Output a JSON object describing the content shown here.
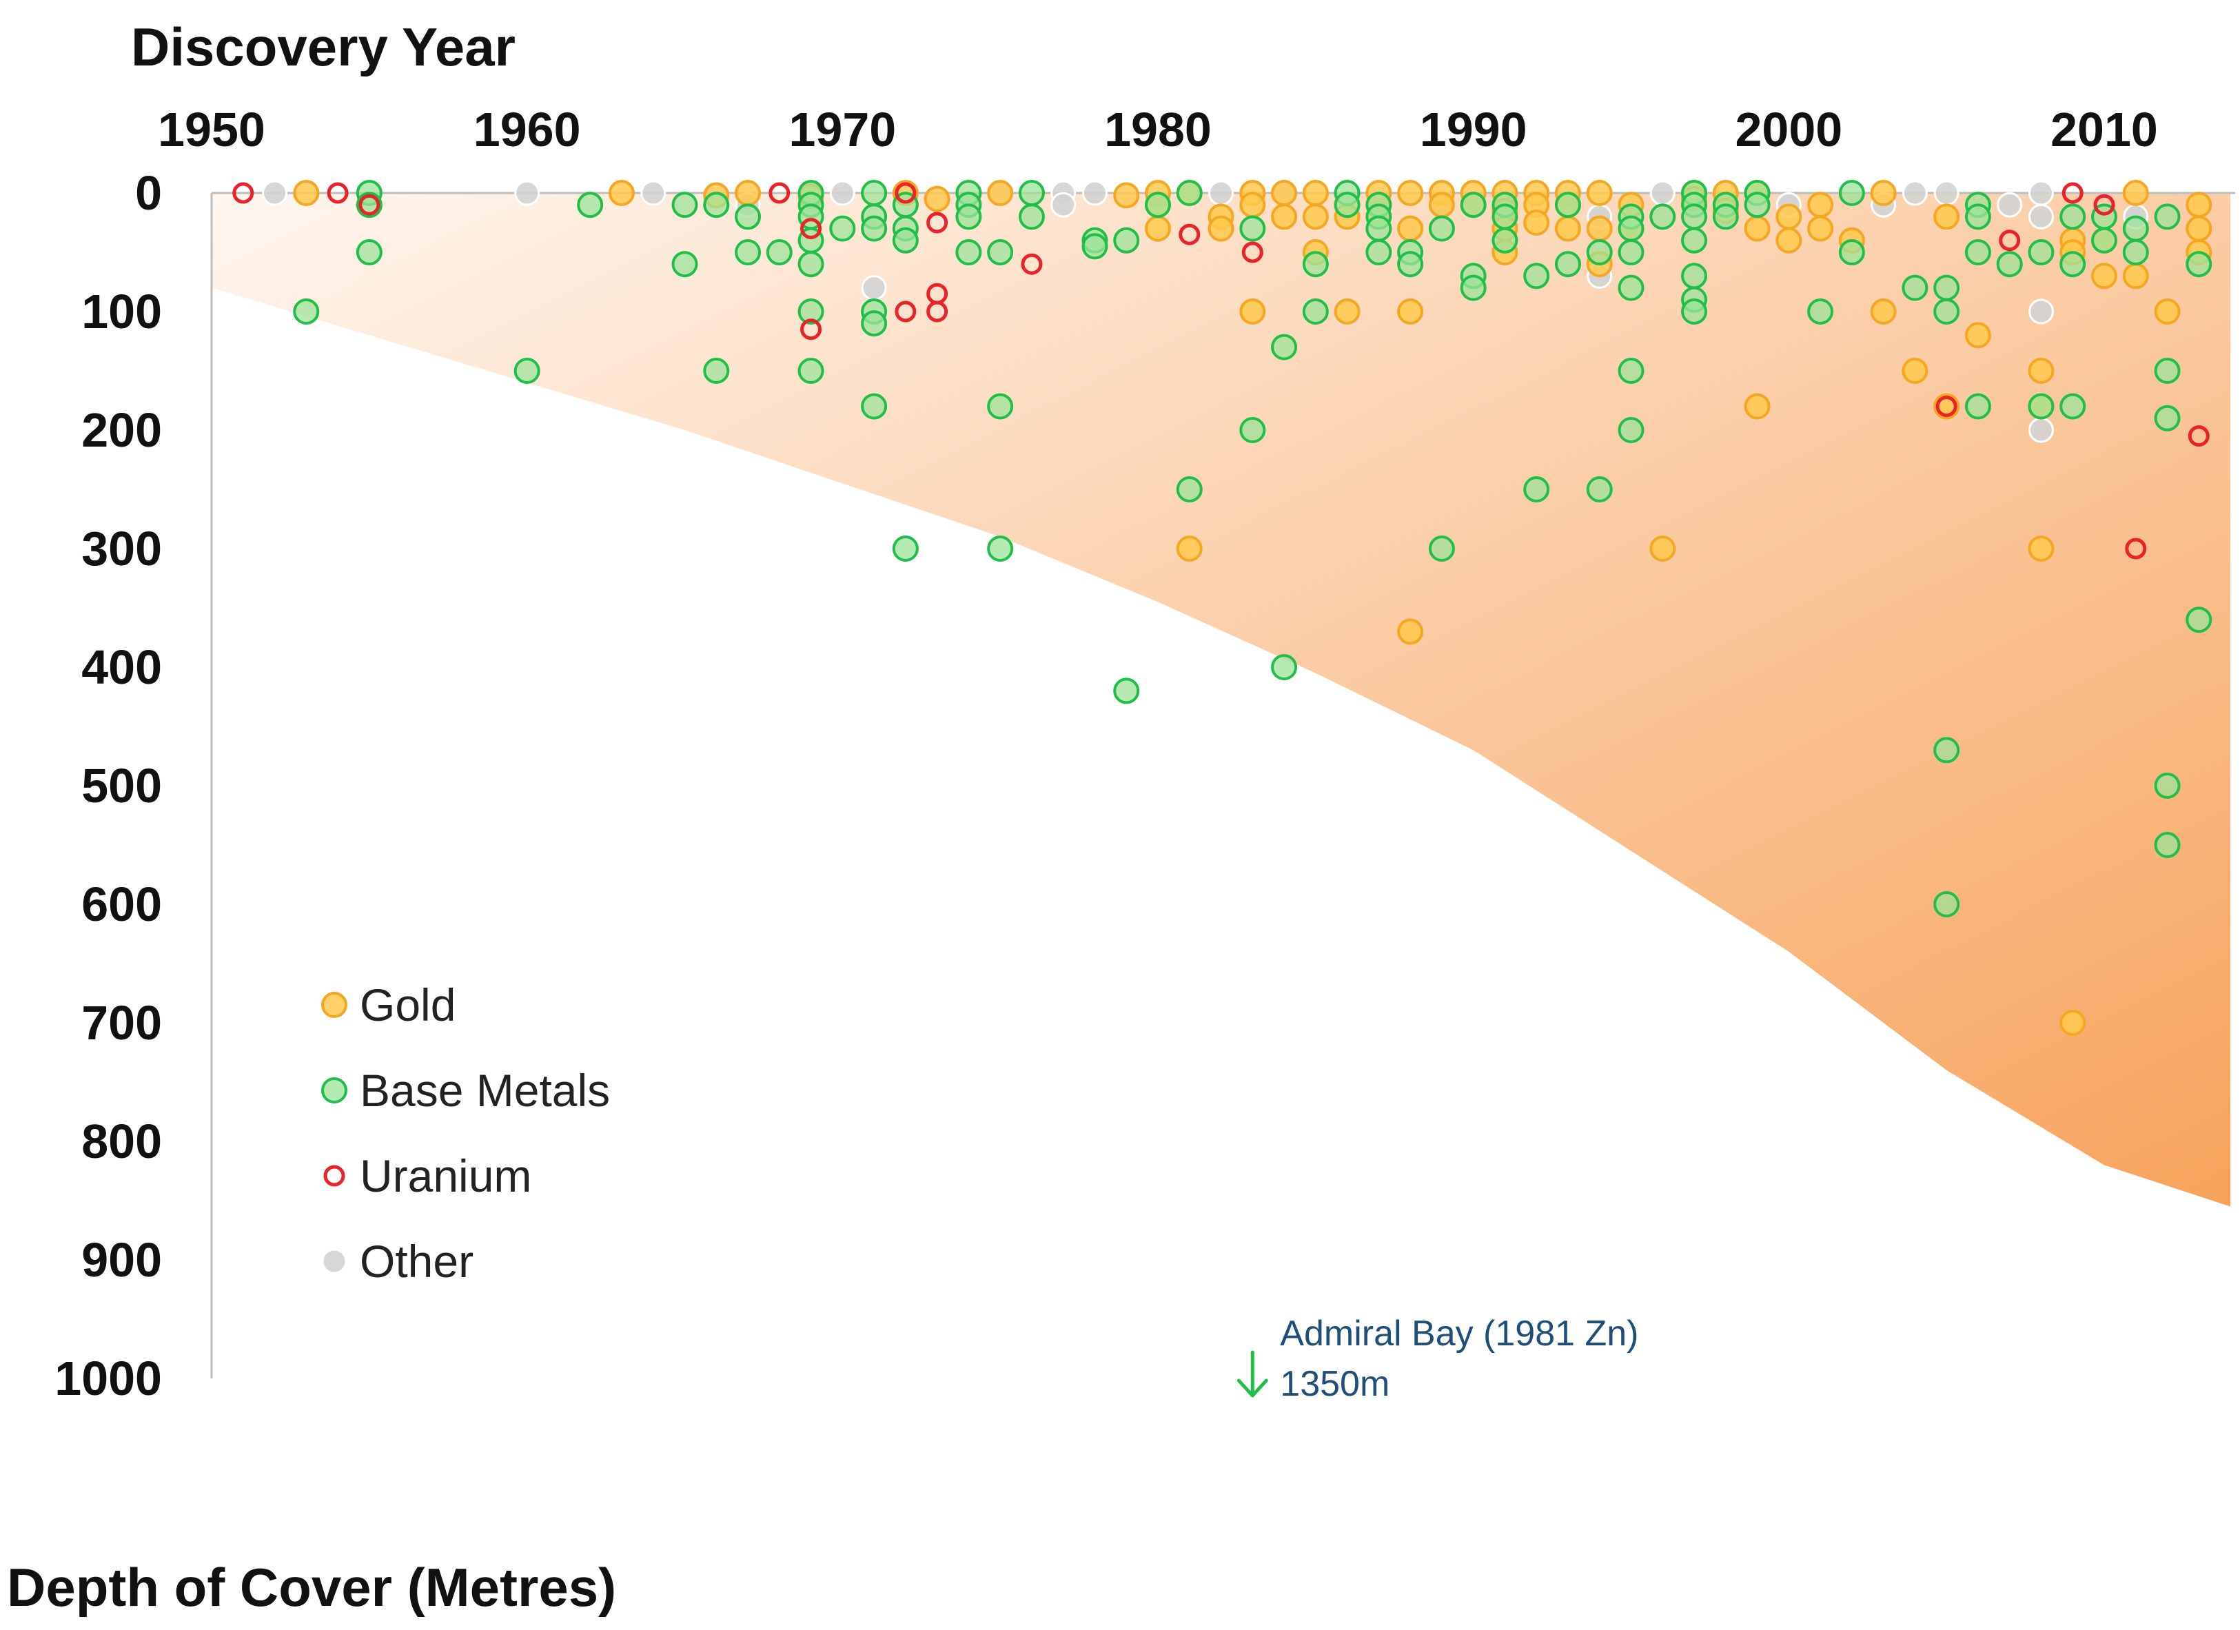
{
  "chart_data": {
    "type": "scatter",
    "title": "Discovery Year",
    "xlabel": "Discovery Year",
    "ylabel": "Depth of Cover (Metres)",
    "x_ticks": [
      1950,
      1960,
      1970,
      1980,
      1990,
      2000,
      2010
    ],
    "y_ticks": [
      0,
      100,
      200,
      300,
      400,
      500,
      600,
      700,
      800,
      900,
      1000
    ],
    "xlim": [
      1950,
      2014.5
    ],
    "ylim": [
      0,
      1000
    ],
    "y_inverted": true,
    "colors": {
      "gold_fill": "#ffc94d",
      "gold_stroke": "#f5a623",
      "base_fill": "#9de39a",
      "base_stroke": "#1fbf4a",
      "uranium_stroke": "#e8242a",
      "other_fill": "#d3d3d3",
      "band_light": "#fff6ef",
      "band_dark": "#f7a35c",
      "annot_arrow": "#1fbf4a"
    },
    "shaded_band": {
      "description": "depth envelope",
      "years": [
        1950,
        1955,
        1960,
        1965,
        1970,
        1975,
        1980,
        1985,
        1990,
        1995,
        2000,
        2005,
        2010,
        2014
      ],
      "depths": [
        80,
        120,
        160,
        200,
        245,
        290,
        345,
        405,
        470,
        555,
        640,
        740,
        820,
        855
      ]
    },
    "series": [
      {
        "name": "Gold",
        "style": "gold",
        "points": [
          [
            1953,
            0
          ],
          [
            1963,
            0
          ],
          [
            1966,
            2
          ],
          [
            1967,
            0
          ],
          [
            1969,
            3
          ],
          [
            1972,
            0
          ],
          [
            1973,
            5
          ],
          [
            1975,
            0
          ],
          [
            1979,
            2
          ],
          [
            1980,
            0
          ],
          [
            1980,
            10
          ],
          [
            1980,
            30
          ],
          [
            1981,
            0
          ],
          [
            1981,
            300
          ],
          [
            1982,
            20
          ],
          [
            1982,
            30
          ],
          [
            1983,
            0
          ],
          [
            1983,
            10
          ],
          [
            1983,
            100
          ],
          [
            1984,
            0
          ],
          [
            1984,
            20
          ],
          [
            1985,
            0
          ],
          [
            1985,
            20
          ],
          [
            1985,
            50
          ],
          [
            1986,
            20
          ],
          [
            1986,
            100
          ],
          [
            1987,
            0
          ],
          [
            1987,
            10
          ],
          [
            1987,
            20
          ],
          [
            1988,
            0
          ],
          [
            1988,
            30
          ],
          [
            1988,
            100
          ],
          [
            1988,
            370
          ],
          [
            1989,
            0
          ],
          [
            1989,
            10
          ],
          [
            1990,
            0
          ],
          [
            1990,
            10
          ],
          [
            1991,
            0
          ],
          [
            1991,
            15
          ],
          [
            1991,
            30
          ],
          [
            1991,
            50
          ],
          [
            1992,
            0
          ],
          [
            1992,
            10
          ],
          [
            1992,
            25
          ],
          [
            1993,
            0
          ],
          [
            1993,
            10
          ],
          [
            1993,
            30
          ],
          [
            1994,
            0
          ],
          [
            1994,
            30
          ],
          [
            1994,
            60
          ],
          [
            1995,
            10
          ],
          [
            1995,
            30
          ],
          [
            1996,
            300
          ],
          [
            1997,
            0
          ],
          [
            1997,
            5
          ],
          [
            1998,
            0
          ],
          [
            1998,
            15
          ],
          [
            1999,
            0
          ],
          [
            1999,
            30
          ],
          [
            1999,
            180
          ],
          [
            2000,
            20
          ],
          [
            2000,
            40
          ],
          [
            2001,
            10
          ],
          [
            2001,
            30
          ],
          [
            2002,
            40
          ],
          [
            2003,
            0
          ],
          [
            2003,
            100
          ],
          [
            2004,
            150
          ],
          [
            2005,
            20
          ],
          [
            2005,
            180
          ],
          [
            2006,
            120
          ],
          [
            2008,
            150
          ],
          [
            2008,
            180
          ],
          [
            2008,
            300
          ],
          [
            2009,
            40
          ],
          [
            2009,
            50
          ],
          [
            2009,
            700
          ],
          [
            2010,
            40
          ],
          [
            2010,
            70
          ],
          [
            2011,
            0
          ],
          [
            2011,
            70
          ],
          [
            2012,
            100
          ],
          [
            2013,
            10
          ],
          [
            2013,
            30
          ],
          [
            2013,
            50
          ]
        ]
      },
      {
        "name": "Base Metals",
        "style": "base",
        "points": [
          [
            1953,
            100
          ],
          [
            1955,
            0
          ],
          [
            1955,
            10
          ],
          [
            1955,
            50
          ],
          [
            1960,
            150
          ],
          [
            1962,
            10
          ],
          [
            1965,
            10
          ],
          [
            1965,
            60
          ],
          [
            1966,
            10
          ],
          [
            1966,
            150
          ],
          [
            1967,
            20
          ],
          [
            1967,
            50
          ],
          [
            1968,
            50
          ],
          [
            1969,
            0
          ],
          [
            1969,
            10
          ],
          [
            1969,
            20
          ],
          [
            1969,
            40
          ],
          [
            1969,
            60
          ],
          [
            1969,
            100
          ],
          [
            1969,
            150
          ],
          [
            1970,
            30
          ],
          [
            1971,
            0
          ],
          [
            1971,
            20
          ],
          [
            1971,
            30
          ],
          [
            1971,
            100
          ],
          [
            1971,
            110
          ],
          [
            1971,
            180
          ],
          [
            1972,
            10
          ],
          [
            1972,
            30
          ],
          [
            1972,
            40
          ],
          [
            1972,
            300
          ],
          [
            1974,
            0
          ],
          [
            1974,
            10
          ],
          [
            1974,
            20
          ],
          [
            1974,
            50
          ],
          [
            1975,
            50
          ],
          [
            1975,
            180
          ],
          [
            1975,
            300
          ],
          [
            1976,
            0
          ],
          [
            1976,
            20
          ],
          [
            1978,
            40
          ],
          [
            1978,
            45
          ],
          [
            1979,
            420
          ],
          [
            1979,
            40
          ],
          [
            1980,
            10
          ],
          [
            1981,
            0
          ],
          [
            1981,
            250
          ],
          [
            1983,
            30
          ],
          [
            1983,
            200
          ],
          [
            1984,
            130
          ],
          [
            1984,
            400
          ],
          [
            1985,
            60
          ],
          [
            1985,
            100
          ],
          [
            1986,
            0
          ],
          [
            1986,
            10
          ],
          [
            1987,
            10
          ],
          [
            1987,
            20
          ],
          [
            1987,
            30
          ],
          [
            1987,
            50
          ],
          [
            1988,
            50
          ],
          [
            1988,
            60
          ],
          [
            1989,
            30
          ],
          [
            1989,
            300
          ],
          [
            1990,
            10
          ],
          [
            1990,
            70
          ],
          [
            1990,
            80
          ],
          [
            1991,
            10
          ],
          [
            1991,
            20
          ],
          [
            1991,
            40
          ],
          [
            1992,
            70
          ],
          [
            1992,
            250
          ],
          [
            1993,
            60
          ],
          [
            1993,
            10
          ],
          [
            1994,
            50
          ],
          [
            1994,
            250
          ],
          [
            1995,
            20
          ],
          [
            1995,
            30
          ],
          [
            1995,
            50
          ],
          [
            1995,
            80
          ],
          [
            1995,
            150
          ],
          [
            1995,
            200
          ],
          [
            1996,
            20
          ],
          [
            1997,
            0
          ],
          [
            1997,
            10
          ],
          [
            1997,
            20
          ],
          [
            1997,
            40
          ],
          [
            1997,
            70
          ],
          [
            1997,
            90
          ],
          [
            1997,
            100
          ],
          [
            1998,
            10
          ],
          [
            1998,
            20
          ],
          [
            1999,
            0
          ],
          [
            1999,
            10
          ],
          [
            2001,
            100
          ],
          [
            2002,
            0
          ],
          [
            2002,
            50
          ],
          [
            2004,
            80
          ],
          [
            2005,
            80
          ],
          [
            2005,
            100
          ],
          [
            2005,
            470
          ],
          [
            2005,
            600
          ],
          [
            2006,
            10
          ],
          [
            2006,
            20
          ],
          [
            2006,
            50
          ],
          [
            2006,
            180
          ],
          [
            2007,
            60
          ],
          [
            2008,
            50
          ],
          [
            2008,
            180
          ],
          [
            2009,
            20
          ],
          [
            2009,
            60
          ],
          [
            2009,
            180
          ],
          [
            2010,
            20
          ],
          [
            2010,
            40
          ],
          [
            2011,
            30
          ],
          [
            2011,
            50
          ],
          [
            2012,
            20
          ],
          [
            2012,
            150
          ],
          [
            2012,
            190
          ],
          [
            2012,
            500
          ],
          [
            2012,
            550
          ],
          [
            2013,
            60
          ],
          [
            2013,
            360
          ]
        ]
      },
      {
        "name": "Uranium",
        "style": "uranium",
        "points": [
          [
            1951,
            0
          ],
          [
            1954,
            0
          ],
          [
            1955,
            10
          ],
          [
            1968,
            0
          ],
          [
            1969,
            30
          ],
          [
            1969,
            115
          ],
          [
            1972,
            0
          ],
          [
            1972,
            100
          ],
          [
            1973,
            25
          ],
          [
            1973,
            85
          ],
          [
            1973,
            100
          ],
          [
            1976,
            60
          ],
          [
            1981,
            35
          ],
          [
            1983,
            50
          ],
          [
            2005,
            180
          ],
          [
            2007,
            40
          ],
          [
            2009,
            0
          ],
          [
            2010,
            10
          ],
          [
            2011,
            300
          ],
          [
            2013,
            205
          ]
        ]
      },
      {
        "name": "Other",
        "style": "other",
        "points": [
          [
            1952,
            0
          ],
          [
            1960,
            0
          ],
          [
            1964,
            0
          ],
          [
            1967,
            10
          ],
          [
            1969,
            0
          ],
          [
            1970,
            0
          ],
          [
            1971,
            80
          ],
          [
            1975,
            0
          ],
          [
            1977,
            0
          ],
          [
            1977,
            10
          ],
          [
            1978,
            0
          ],
          [
            1982,
            0
          ],
          [
            1984,
            0
          ],
          [
            1989,
            10
          ],
          [
            1994,
            20
          ],
          [
            1994,
            70
          ],
          [
            1996,
            0
          ],
          [
            1998,
            20
          ],
          [
            2000,
            10
          ],
          [
            2003,
            10
          ],
          [
            2004,
            0
          ],
          [
            2005,
            0
          ],
          [
            2007,
            10
          ],
          [
            2008,
            0
          ],
          [
            2008,
            20
          ],
          [
            2008,
            100
          ],
          [
            2008,
            200
          ],
          [
            2011,
            20
          ]
        ]
      }
    ],
    "legend": {
      "placement": "lower-left",
      "items": [
        {
          "label": "Gold",
          "style": "gold"
        },
        {
          "label": "Base Metals",
          "style": "base"
        },
        {
          "label": "Uranium",
          "style": "uranium"
        },
        {
          "label": "Other",
          "style": "other"
        }
      ]
    },
    "annotation": {
      "year": 1983,
      "line1": "Admiral Bay (1981 Zn)",
      "line2": "1350m"
    }
  },
  "labels": {
    "top_title": "Discovery Year",
    "bottom_title": "Depth of Cover (Metres)"
  }
}
